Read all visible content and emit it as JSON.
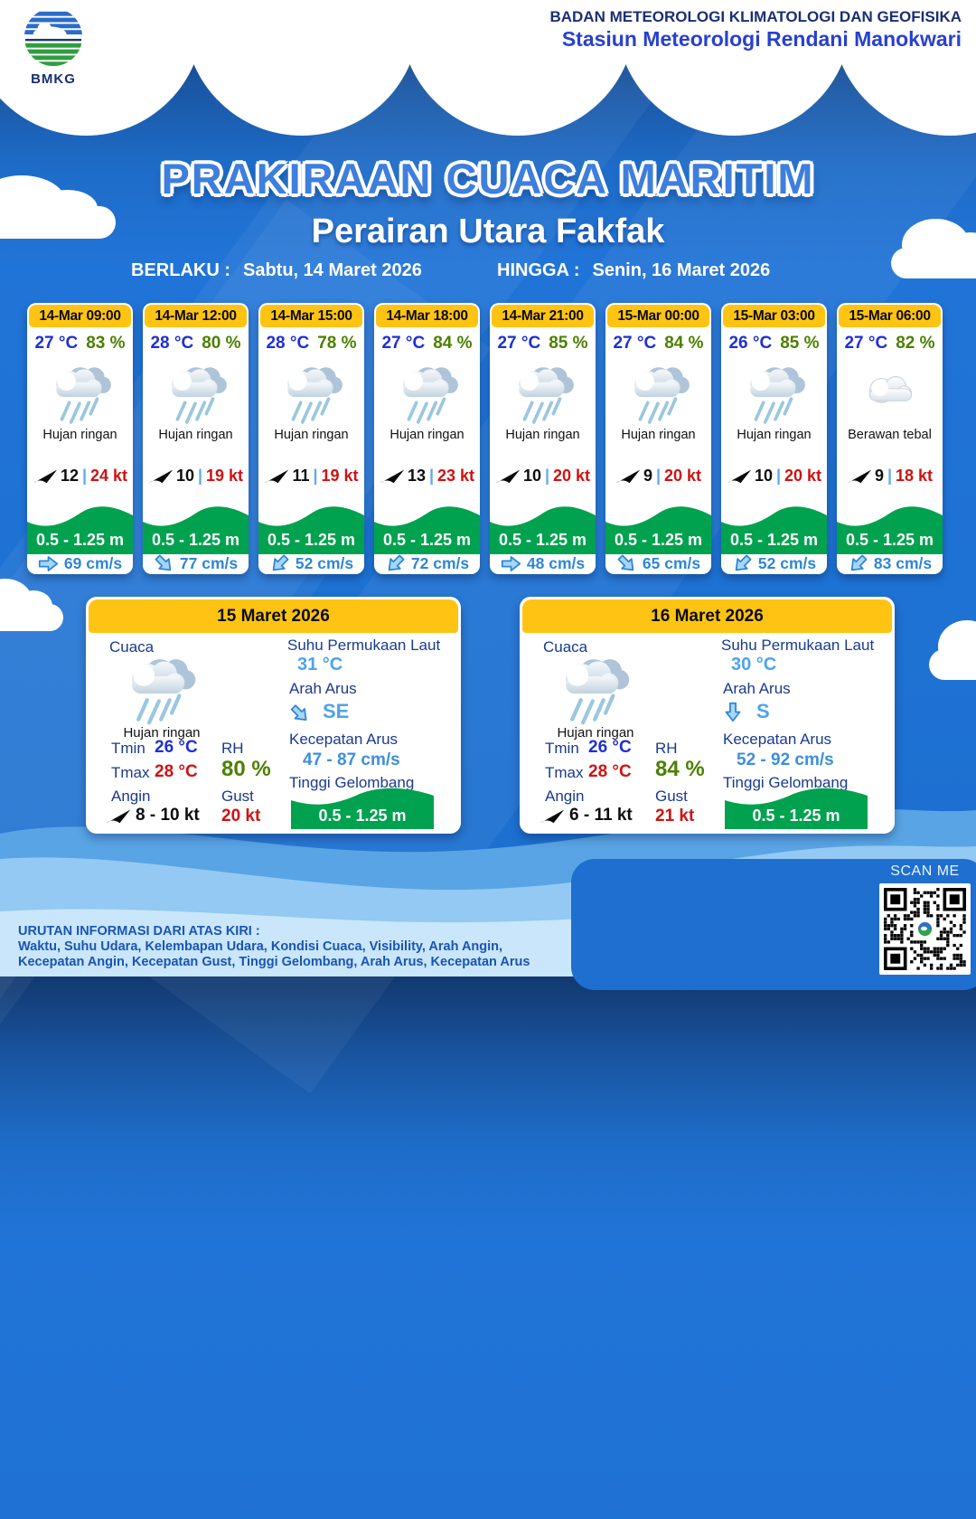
{
  "header": {
    "logo_text": "BMKG",
    "agency_line1": "BADAN METEOROLOGI KLIMATOLOGI DAN GEOFISIKA",
    "agency_line2": "Stasiun Meteorologi Rendani Manokwari"
  },
  "title": {
    "main": "PRAKIRAAN CUACA MARITIM",
    "area": "Perairan Utara Fakfak",
    "valid_from_label": "BERLAKU :",
    "valid_from": "Sabtu, 14 Maret 2026",
    "valid_to_label": "HINGGA :",
    "valid_to": "Senin, 16 Maret 2026"
  },
  "labels": {
    "wind_sep": "|",
    "cuaca": "Cuaca",
    "tmin": "Tmin",
    "tmax": "Tmax",
    "angin": "Angin",
    "rh": "RH",
    "gust": "Gust",
    "sst": "Suhu Permukaan Laut",
    "arah_arus": "Arah Arus",
    "kecepatan_arus": "Kecepatan Arus",
    "tinggi_gelombang": "Tinggi Gelombang"
  },
  "colors": {
    "accent_yellow": "#FFC413",
    "wave_green": "#00A24F",
    "temp_blue": "#1F2FD8",
    "humidity_green": "#4C8000",
    "gust_red": "#CF1212",
    "current_blue": "#2E86D5"
  },
  "cards": [
    {
      "time": "14-Mar 09:00",
      "temp": "27 °C",
      "rh": "83 %",
      "weather": "Hujan ringan",
      "icon": "rain-cloud",
      "wind": "12",
      "gust": "24 kt",
      "wave": "0.5 - 1.25 m",
      "current": "69 cm/s",
      "current_dir": "E"
    },
    {
      "time": "14-Mar 12:00",
      "temp": "28 °C",
      "rh": "80 %",
      "weather": "Hujan ringan",
      "icon": "rain-cloud",
      "wind": "10",
      "gust": "19 kt",
      "wave": "0.5 - 1.25 m",
      "current": "77 cm/s",
      "current_dir": "SE"
    },
    {
      "time": "14-Mar 15:00",
      "temp": "28 °C",
      "rh": "78 %",
      "weather": "Hujan ringan",
      "icon": "rain-cloud",
      "wind": "11",
      "gust": "19 kt",
      "wave": "0.5 - 1.25 m",
      "current": "52 cm/s",
      "current_dir": "SW"
    },
    {
      "time": "14-Mar 18:00",
      "temp": "27 °C",
      "rh": "84 %",
      "weather": "Hujan ringan",
      "icon": "rain-cloud",
      "wind": "13",
      "gust": "23 kt",
      "wave": "0.5 - 1.25 m",
      "current": "72 cm/s",
      "current_dir": "SW"
    },
    {
      "time": "14-Mar 21:00",
      "temp": "27 °C",
      "rh": "85 %",
      "weather": "Hujan ringan",
      "icon": "rain-cloud",
      "wind": "10",
      "gust": "20 kt",
      "wave": "0.5 - 1.25 m",
      "current": "48 cm/s",
      "current_dir": "E"
    },
    {
      "time": "15-Mar 00:00",
      "temp": "27 °C",
      "rh": "84 %",
      "weather": "Hujan ringan",
      "icon": "rain-cloud",
      "wind": "9",
      "gust": "20 kt",
      "wave": "0.5 - 1.25 m",
      "current": "65 cm/s",
      "current_dir": "SE"
    },
    {
      "time": "15-Mar 03:00",
      "temp": "26 °C",
      "rh": "85 %",
      "weather": "Hujan ringan",
      "icon": "rain-cloud",
      "wind": "10",
      "gust": "20 kt",
      "wave": "0.5 - 1.25 m",
      "current": "52 cm/s",
      "current_dir": "SW"
    },
    {
      "time": "15-Mar 06:00",
      "temp": "27 °C",
      "rh": "82 %",
      "weather": "Berawan tebal",
      "icon": "cloud",
      "wind": "9",
      "gust": "18 kt",
      "wave": "0.5 - 1.25 m",
      "current": "83 cm/s",
      "current_dir": "SW"
    }
  ],
  "daily": [
    {
      "date": "15 Maret 2026",
      "weather": "Hujan ringan",
      "tmin": "26 °C",
      "tmax": "28 °C",
      "angin": "8  - 10 kt",
      "rh": "80 %",
      "gust": "20 kt",
      "sst": "31 °C",
      "arah": "SE",
      "arah_dir": "SE",
      "kecepatan": "47  - 87 cm/s",
      "wave": "0.5 - 1.25 m"
    },
    {
      "date": "16 Maret 2026",
      "weather": "Hujan ringan",
      "tmin": "26 °C",
      "tmax": "28 °C",
      "angin": "6  - 11 kt",
      "rh": "84 %",
      "gust": "21 kt",
      "sst": "30 °C",
      "arah": "S",
      "arah_dir": "S",
      "kecepatan": "52  - 92 cm/s",
      "wave": "0.5 - 1.25 m"
    }
  ],
  "footer": {
    "line1": "URUTAN INFORMASI DARI ATAS KIRI :",
    "line2": "Waktu, Suhu Udara, Kelembapan Udara, Kondisi Cuaca, Visibility, Arah Angin,",
    "line3": "Kecepatan Angin, Kecepatan Gust, Tinggi Gelombang, Arah Arus, Kecepatan Arus"
  },
  "qr": {
    "label": "SCAN ME"
  }
}
